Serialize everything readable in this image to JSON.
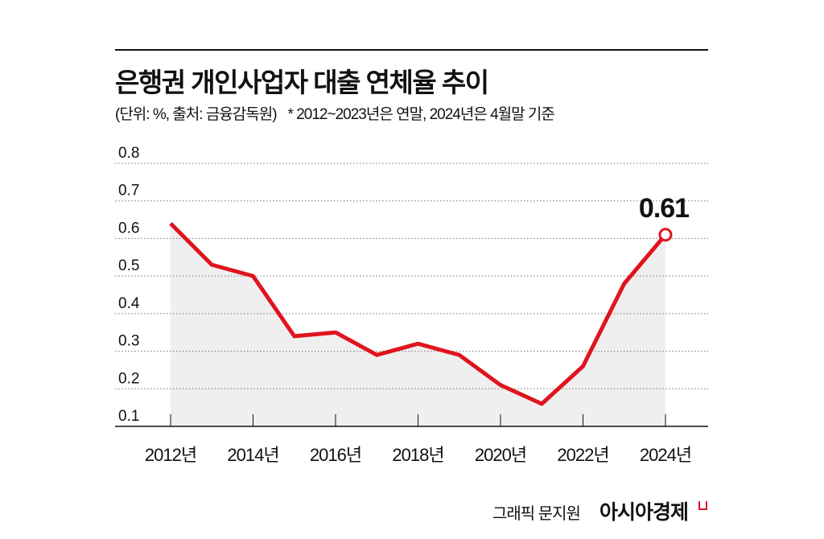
{
  "chart_data": {
    "type": "area",
    "title": "은행권 개인사업자 대출 연체율 추이",
    "subtitle_units": "(단위: %, 출처: 금융감독원)",
    "subtitle_note": "* 2012~2023년은 연말, 2024년은 4월말 기준",
    "x": [
      2012,
      2013,
      2014,
      2015,
      2016,
      2017,
      2018,
      2019,
      2020,
      2021,
      2022,
      2023,
      2024
    ],
    "values": [
      0.64,
      0.53,
      0.5,
      0.34,
      0.35,
      0.29,
      0.32,
      0.29,
      0.21,
      0.16,
      0.26,
      0.48,
      0.61
    ],
    "x_tick_labels": [
      "2012년",
      "2014년",
      "2016년",
      "2018년",
      "2020년",
      "2022년",
      "2024년"
    ],
    "x_tick_years": [
      2012,
      2014,
      2016,
      2018,
      2020,
      2022,
      2024
    ],
    "y_tick_labels": [
      "0.1",
      "0.2",
      "0.3",
      "0.4",
      "0.5",
      "0.6",
      "0.7",
      "0.8"
    ],
    "ylim": [
      0.1,
      0.8
    ],
    "grid": "horizontal dotted",
    "annotation": "0.61",
    "line_color": "#e0141e",
    "fill_color": "#efefef"
  },
  "footer": {
    "credit": "그래픽 문지원",
    "brand": "아시아경제"
  }
}
